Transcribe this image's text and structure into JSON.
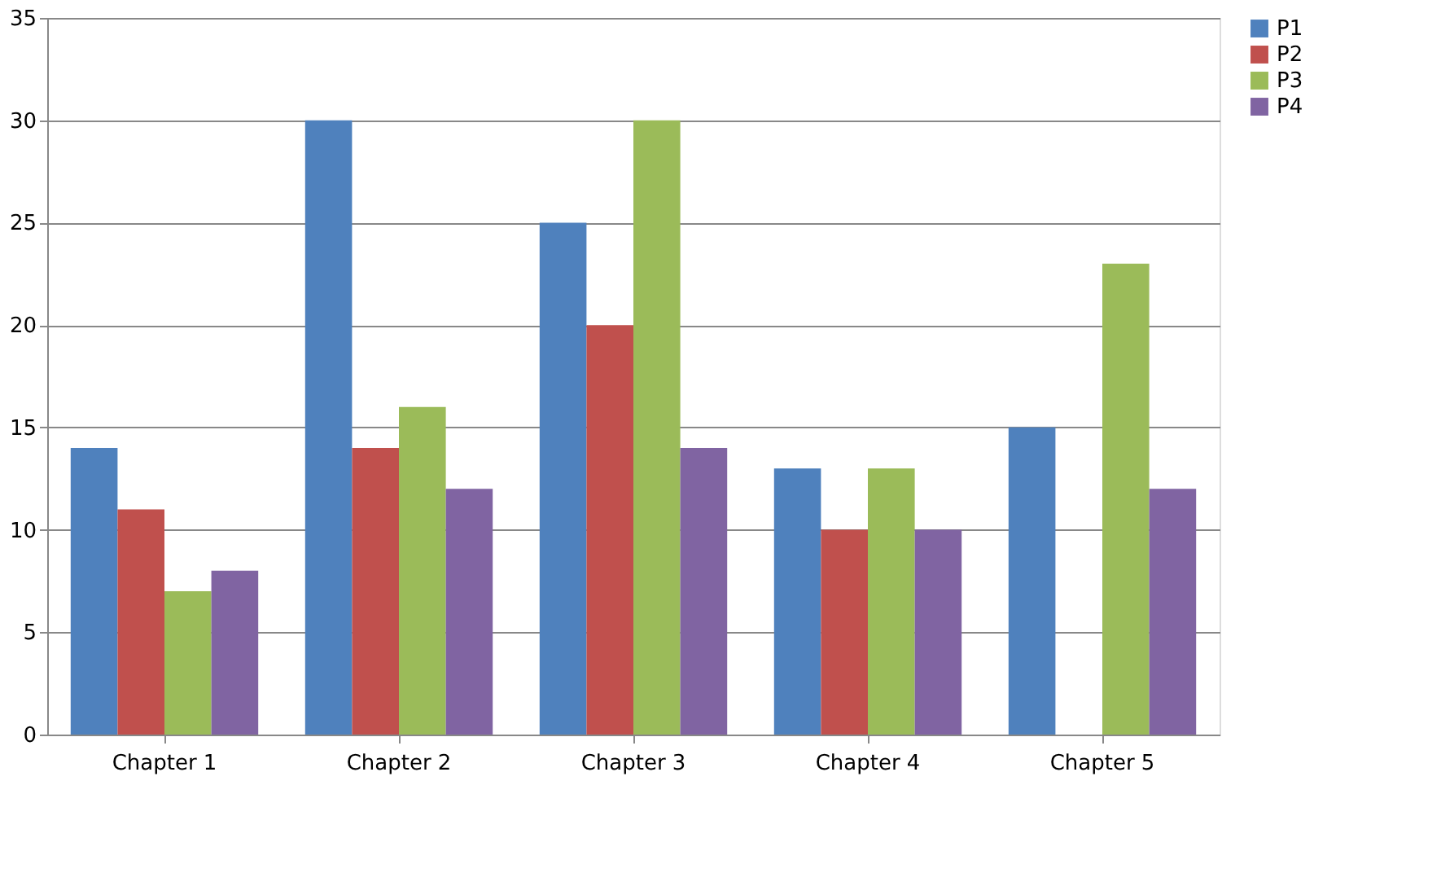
{
  "chart_data": {
    "type": "bar",
    "categories": [
      "Chapter 1",
      "Chapter 2",
      "Chapter 3",
      "Chapter 4",
      "Chapter 5"
    ],
    "series": [
      {
        "name": "P1",
        "color": "#4f81bd",
        "values": [
          14,
          30,
          25,
          13,
          15
        ]
      },
      {
        "name": "P2",
        "color": "#c0504d",
        "values": [
          11,
          14,
          20,
          10,
          null
        ]
      },
      {
        "name": "P3",
        "color": "#9bbb59",
        "values": [
          7,
          16,
          30,
          13,
          23
        ]
      },
      {
        "name": "P4",
        "color": "#8064a2",
        "values": [
          8,
          12,
          14,
          10,
          12
        ]
      }
    ],
    "ylim": [
      0,
      35
    ],
    "yticks": [
      0,
      5,
      10,
      15,
      20,
      25,
      30,
      35
    ],
    "grid": "y",
    "legend": "right"
  }
}
